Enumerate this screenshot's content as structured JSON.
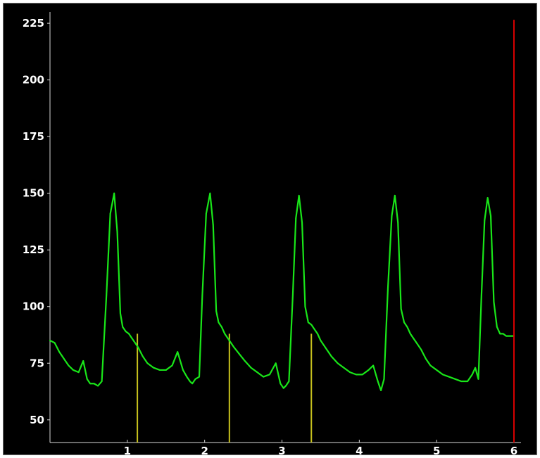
{
  "chart_data": {
    "type": "line",
    "title": "",
    "xlabel": "",
    "ylabel": "",
    "xlim": [
      0,
      6
    ],
    "ylim": [
      40,
      230
    ],
    "grid": false,
    "x_ticks": [
      "1",
      "2",
      "3",
      "4",
      "5",
      "6"
    ],
    "y_ticks": [
      "50",
      "75",
      "100",
      "125",
      "150",
      "175",
      "200",
      "225"
    ],
    "colors": {
      "background": "#000000",
      "trace": "#19e619",
      "axis": "#d8d8d8",
      "marker": "#c8c21d",
      "cursor": "#d60000",
      "label": "#ffffff"
    },
    "series": [
      {
        "name": "",
        "x": [
          0.0,
          0.06,
          0.12,
          0.18,
          0.24,
          0.3,
          0.37,
          0.43,
          0.48,
          0.52,
          0.57,
          0.62,
          0.67,
          0.73,
          0.78,
          0.83,
          0.87,
          0.91,
          0.94,
          0.98,
          1.02,
          1.06,
          1.1,
          1.14,
          1.2,
          1.26,
          1.34,
          1.42,
          1.5,
          1.58,
          1.65,
          1.72,
          1.77,
          1.81,
          1.84,
          1.88,
          1.93,
          1.97,
          2.02,
          2.07,
          2.11,
          2.15,
          2.18,
          2.22,
          2.26,
          2.3,
          2.34,
          2.38,
          2.45,
          2.52,
          2.6,
          2.68,
          2.76,
          2.84,
          2.92,
          2.98,
          3.02,
          3.05,
          3.09,
          3.14,
          3.18,
          3.22,
          3.26,
          3.3,
          3.34,
          3.38,
          3.42,
          3.46,
          3.5,
          3.56,
          3.64,
          3.72,
          3.8,
          3.88,
          3.96,
          4.04,
          4.12,
          4.18,
          4.24,
          4.28,
          4.32,
          4.37,
          4.42,
          4.46,
          4.5,
          4.54,
          4.58,
          4.62,
          4.66,
          4.7,
          4.74,
          4.8,
          4.86,
          4.92,
          5.0,
          5.08,
          5.16,
          5.24,
          5.32,
          5.4,
          5.46,
          5.5,
          5.54,
          5.58,
          5.62,
          5.66,
          5.7,
          5.74,
          5.78,
          5.82,
          5.86,
          5.9,
          5.95,
          6.0
        ],
        "values": [
          85,
          84,
          80,
          77,
          74,
          72,
          71,
          76,
          68,
          66,
          66,
          65,
          67,
          105,
          141,
          150,
          133,
          97,
          91,
          89,
          88,
          86,
          84,
          82,
          78,
          75,
          73,
          72,
          72,
          74,
          80,
          72,
          69,
          67,
          66,
          68,
          69,
          105,
          141,
          150,
          136,
          98,
          93,
          91,
          88,
          86,
          84,
          82,
          79,
          76,
          73,
          71,
          69,
          70,
          75,
          66,
          64,
          65,
          67,
          105,
          139,
          149,
          137,
          100,
          93,
          92,
          90,
          88,
          85,
          82,
          78,
          75,
          73,
          71,
          70,
          70,
          72,
          74,
          67,
          63,
          68,
          108,
          140,
          149,
          137,
          99,
          93,
          91,
          88,
          86,
          84,
          81,
          77,
          74,
          72,
          70,
          69,
          68,
          67,
          67,
          70,
          73,
          68,
          105,
          138,
          148,
          140,
          102,
          91,
          88,
          88,
          87,
          87,
          87
        ]
      }
    ],
    "markers": [
      1.13,
      2.32,
      3.38
    ],
    "cursor": 6.0
  }
}
